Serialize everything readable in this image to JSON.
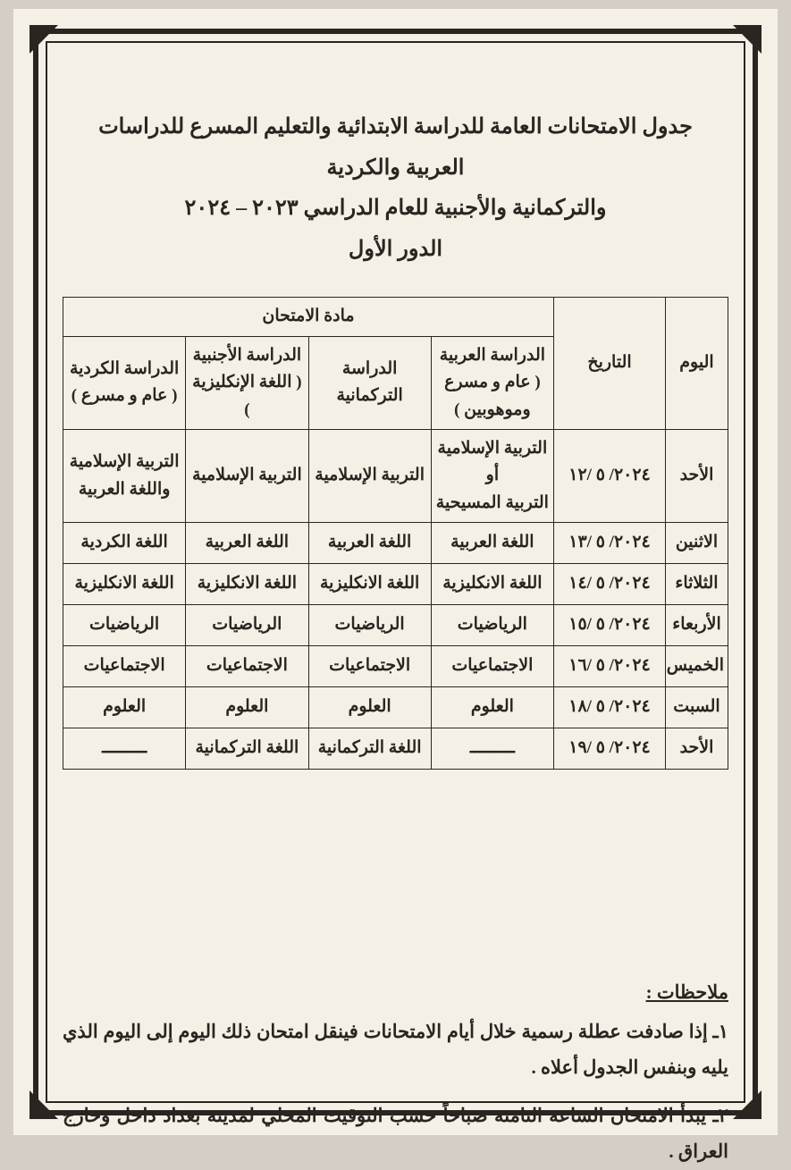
{
  "title_line1": "جدول الامتحانات العامة للدراسة الابتدائية والتعليم المسرع للدراسات العربية والكردية",
  "title_line2": "والتركمانية والأجنبية للعام الدراسي ٢٠٢٣ – ٢٠٢٤",
  "title_line3": "الدور الأول",
  "table": {
    "head": {
      "day": "اليوم",
      "date": "التاريخ",
      "subject_group": "مادة الامتحان",
      "col_arabic": "الدراسة العربية\n( عام و مسرع\nوموهوبين )",
      "col_turkmen": "الدراسة التركمانية",
      "col_foreign": "الدراسة الأجنبية\n( اللغة الإنكليزية )",
      "col_kurdish": "الدراسة الكردية\n( عام و مسرع )"
    },
    "rows": [
      {
        "day": "الأحد",
        "date": "٢٠٢٤/ ٥ /١٢",
        "arabic": "التربية الإسلامية\nأو\nالتربية المسيحية",
        "turkmen": "التربية الإسلامية",
        "foreign": "التربية الإسلامية",
        "kurdish": "التربية الإسلامية\nواللغة العربية",
        "tall": true
      },
      {
        "day": "الاثنين",
        "date": "٢٠٢٤/ ٥ /١٣",
        "arabic": "اللغة العربية",
        "turkmen": "اللغة العربية",
        "foreign": "اللغة العربية",
        "kurdish": "اللغة الكردية"
      },
      {
        "day": "الثلاثاء",
        "date": "٢٠٢٤/ ٥ /١٤",
        "arabic": "اللغة الانكليزية",
        "turkmen": "اللغة الانكليزية",
        "foreign": "اللغة الانكليزية",
        "kurdish": "اللغة الانكليزية"
      },
      {
        "day": "الأربعاء",
        "date": "٢٠٢٤/ ٥ /١٥",
        "arabic": "الرياضيات",
        "turkmen": "الرياضيات",
        "foreign": "الرياضيات",
        "kurdish": "الرياضيات"
      },
      {
        "day": "الخميس",
        "date": "٢٠٢٤/ ٥ /١٦",
        "arabic": "الاجتماعيات",
        "turkmen": "الاجتماعيات",
        "foreign": "الاجتماعيات",
        "kurdish": "الاجتماعيات"
      },
      {
        "day": "السبت",
        "date": "٢٠٢٤/ ٥ /١٨",
        "arabic": "العلوم",
        "turkmen": "العلوم",
        "foreign": "العلوم",
        "kurdish": "العلوم"
      },
      {
        "day": "الأحد",
        "date": "٢٠٢٤/ ٥ /١٩",
        "arabic": "ـــــــــ",
        "turkmen": "اللغة التركمانية",
        "foreign": "اللغة التركمانية",
        "kurdish": "ـــــــــ"
      }
    ]
  },
  "notes": {
    "title": "ملاحظات :",
    "items": [
      "١ـ إذا صادفت عطلة رسمية خلال أيام الامتحانات فينقل امتحان ذلك اليوم إلى اليوم الذي يليه وبنفس الجدول أعلاه .",
      "٢ـ يبدأ الامتحان الساعة الثامنة صباحاً حسب التوقيت المحلي لمدينة بغداد داخل وخارج العراق ."
    ]
  },
  "colors": {
    "page_bg": "#f5f0e6",
    "outer_bg": "#d4cec4",
    "ink": "#2a2520"
  }
}
